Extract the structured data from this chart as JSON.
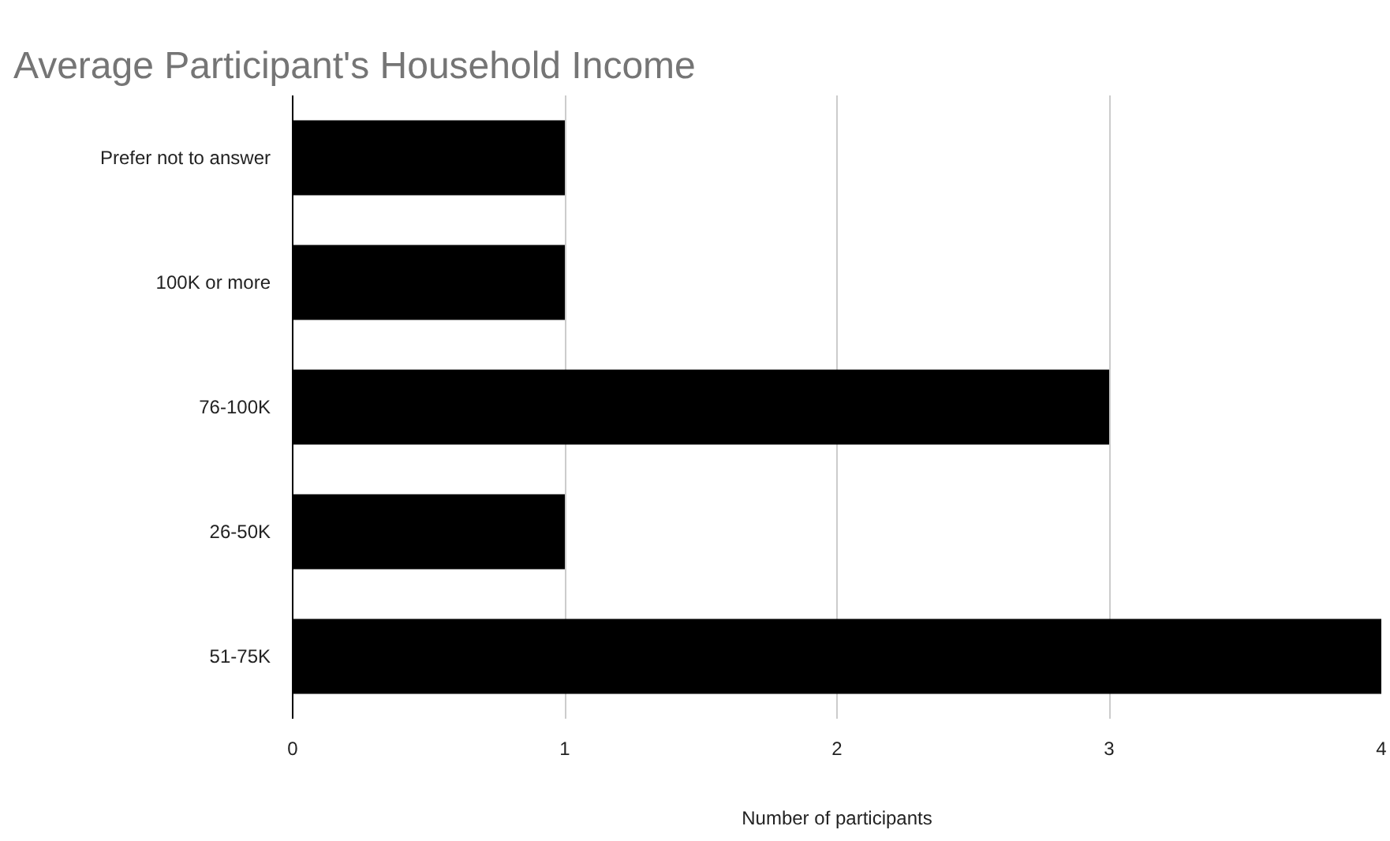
{
  "chart_data": {
    "type": "bar",
    "orientation": "horizontal",
    "title": "Average Participant's Household Income",
    "xlabel": "Number of participants",
    "categories": [
      "Prefer not to answer",
      "100K or more",
      "76-100K",
      "26-50K",
      "51-75K"
    ],
    "values": [
      1,
      1,
      3,
      1,
      4
    ],
    "color": "#000000",
    "xlim": [
      0,
      4
    ],
    "xticks": [
      0,
      1,
      2,
      3,
      4
    ],
    "grid": "x"
  }
}
